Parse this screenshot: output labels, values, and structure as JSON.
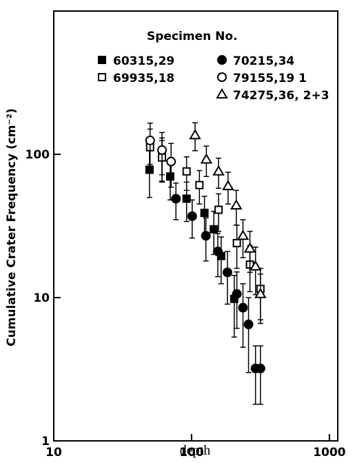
{
  "chart_data": {
    "type": "scatter",
    "x_label": "depth",
    "y_label": "Cumulative Crater Frequency (cm⁻²)",
    "legend_title": "Specimen No.",
    "log_x": true,
    "log_y": true,
    "xlim": [
      10,
      1150
    ],
    "ylim": [
      1,
      1000
    ],
    "xticks": [
      10,
      100,
      1000
    ],
    "yticks": [
      1,
      10,
      100
    ],
    "series": [
      {
        "name": "60315,29",
        "marker": "square",
        "filled": true,
        "color": "#000000",
        "x": [
          49.5,
          61,
          70,
          92,
          124,
          145,
          164,
          204
        ],
        "values": [
          78,
          97,
          70,
          49,
          39,
          30,
          19.5,
          9.8
        ],
        "error": [
          28,
          33,
          22,
          15,
          12,
          10,
          7,
          4.5
        ]
      },
      {
        "name": "69935,18",
        "marker": "square",
        "filled": false,
        "color": "#000000",
        "x": [
          50,
          61,
          92,
          114,
          157,
          213,
          265,
          316
        ],
        "values": [
          112,
          95,
          76,
          61,
          41,
          24,
          17,
          11.5
        ],
        "error": [
          38,
          30,
          20,
          16,
          12,
          8,
          6,
          4.5
        ]
      },
      {
        "name": "70215,34",
        "marker": "circle",
        "filled": true,
        "color": "#000000",
        "x": [
          77,
          101,
          127,
          155,
          182,
          213,
          236,
          259,
          291,
          316
        ],
        "values": [
          49,
          37,
          27,
          21,
          15,
          10.6,
          8.5,
          6.5,
          3.2,
          3.2
        ],
        "error": [
          14,
          11,
          9,
          7,
          6,
          4.5,
          4,
          3.5,
          1.4,
          1.4
        ]
      },
      {
        "name": "79155,19 1",
        "marker": "circle",
        "filled": false,
        "color": "#000000",
        "x": [
          50,
          61,
          71
        ],
        "values": [
          125,
          107,
          89
        ],
        "error": [
          40,
          35,
          30
        ]
      },
      {
        "name": "74275,36, 2+3",
        "marker": "triangle",
        "filled": false,
        "color": "#000000",
        "x": [
          106,
          128,
          157,
          184,
          211,
          236,
          265,
          291,
          316
        ],
        "values": [
          136,
          92,
          76,
          60,
          44,
          27,
          22,
          16.5,
          10.6
        ],
        "error": [
          30,
          22,
          18,
          15,
          12,
          8,
          7,
          6,
          4
        ]
      }
    ]
  }
}
